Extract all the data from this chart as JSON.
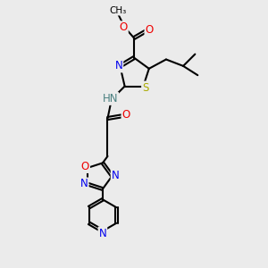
{
  "bg_color": "#ebebeb",
  "atom_colors": {
    "C": "#000000",
    "N": "#0000ee",
    "O": "#ee0000",
    "S": "#aaaa00",
    "H": "#4a8080"
  },
  "bond_color": "#000000",
  "bond_width": 1.5,
  "dbo": 0.08,
  "font_size": 8.5,
  "fig_size": [
    3.0,
    3.0
  ],
  "dpi": 100
}
